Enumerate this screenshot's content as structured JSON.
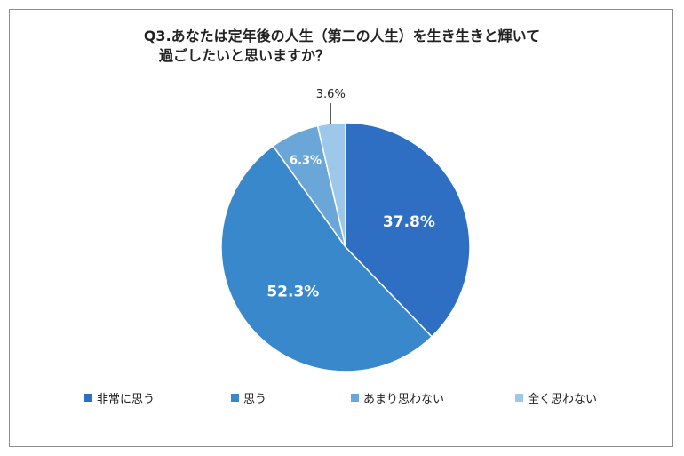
{
  "chart_data": {
    "type": "pie",
    "title_line1": "Q3.あなたは定年後の人生（第二の人生）を生き生きと輝いて",
    "title_line2": "過ごしたいと思いますか？",
    "categories": [
      "非常に思う",
      "思う",
      "あまり思わない",
      "全く思わない"
    ],
    "values": [
      37.8,
      52.3,
      6.3,
      3.6
    ],
    "labels": [
      "37.8%",
      "52.3%",
      "6.3%",
      "3.6%"
    ],
    "colors": [
      "#2e6fc4",
      "#3a88cc",
      "#6aa7d8",
      "#9ec8ea"
    ],
    "legend_position": "bottom",
    "start_angle": "12 o'clock, clockwise"
  }
}
